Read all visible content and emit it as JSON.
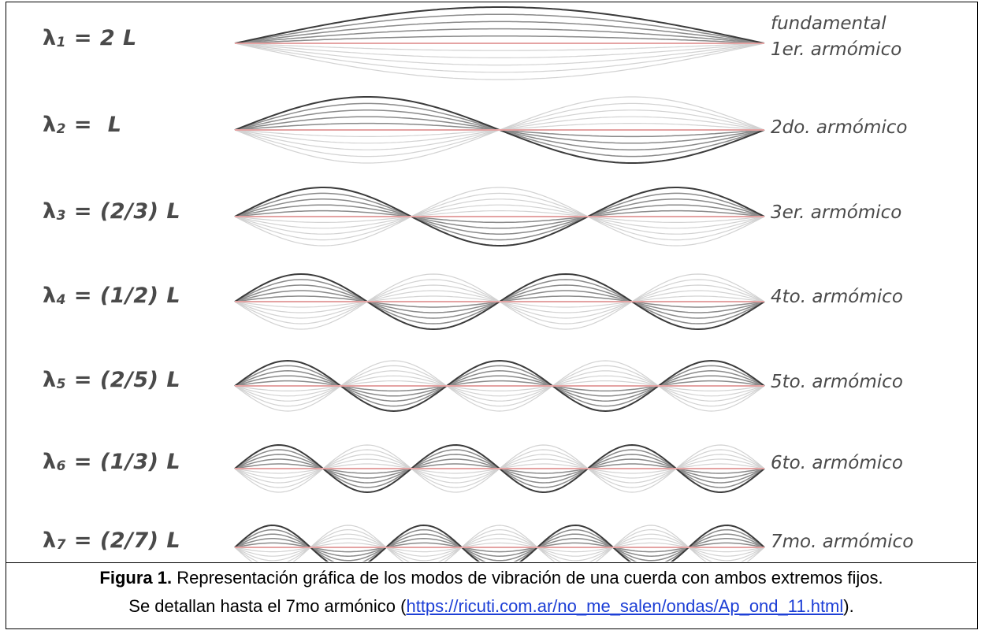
{
  "modes": [
    {
      "symbol": "λ",
      "index": "1",
      "expr": "= 2 L",
      "label": "1er. armómico",
      "label_extra": "fundamental",
      "loops": 1
    },
    {
      "symbol": "λ",
      "index": "2",
      "expr": "=  L",
      "label": "2do. armómico",
      "loops": 2
    },
    {
      "symbol": "λ",
      "index": "3",
      "expr": "= (2/3) L",
      "label": "3er. armómico",
      "loops": 3
    },
    {
      "symbol": "λ",
      "index": "4",
      "expr": "= (1/2) L",
      "label": "4to. armómico",
      "loops": 4
    },
    {
      "symbol": "λ",
      "index": "5",
      "expr": "= (2/5) L",
      "label": "5to. armómico",
      "loops": 5
    },
    {
      "symbol": "λ",
      "index": "6",
      "expr": "= (1/3) L",
      "label": "6to. armómico",
      "loops": 6
    },
    {
      "symbol": "λ",
      "index": "7",
      "expr": "= (2/7) L",
      "label": "7mo. armómico",
      "loops": 7
    }
  ],
  "colors": {
    "string_line": "#e4a3a3",
    "curve_dark": "#3b3b3b",
    "curve_mid": "#8a8a8a",
    "curve_light": "#d2d2d2",
    "link": "#1d3fd6"
  },
  "caption": {
    "bold": "Figura 1.",
    "line1": " Representación gráfica de los modos de vibración de una cuerda con ambos extremos fijos.",
    "line2_pre": "Se detallan hasta el 7mo armónico (",
    "link_text": "https://ricuti.com.ar/no_me_salen/ondas/Ap_ond_11.html",
    "line2_post": ")."
  }
}
